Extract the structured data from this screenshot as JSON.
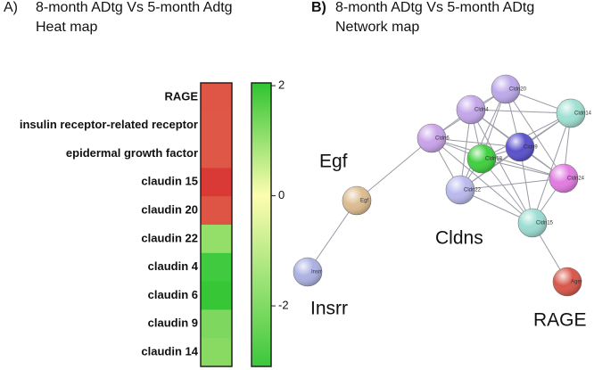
{
  "chart_data": [
    {
      "type": "heatmap",
      "panel": "A)",
      "title": "8-month ADtg Vs 5-month Adtg",
      "subtitle": "Heat map",
      "categories": [
        "RAGE",
        "insulin receptor-related receptor",
        "epidermal growth factor",
        "claudin 15",
        "claudin 20",
        "claudin 22",
        "claudin 4",
        "claudin 6",
        "claudin 9",
        "claudin 14"
      ],
      "values": [
        1.5,
        1.4,
        1.4,
        1.8,
        1.5,
        -1.2,
        -1.8,
        -1.9,
        -1.4,
        -1.3
      ],
      "colors": [
        "#df5646",
        "#df5747",
        "#df5747",
        "#d93a35",
        "#df5545",
        "#93df6a",
        "#3fca3f",
        "#36c636",
        "#7ed85f",
        "#88da62"
      ],
      "clim": [
        -3.1,
        2.05
      ],
      "cticks": [
        2,
        0,
        -2
      ],
      "colorbar_colors": [
        "#2fc42f",
        "#fdfdb0",
        "#3cc83c"
      ]
    },
    {
      "type": "network",
      "panel": "B)",
      "title": "8-month ADtg Vs 5-month ADtg",
      "subtitle": "Network map",
      "nodes": [
        "Cldn20",
        "Cldn4",
        "Cldn14",
        "Cldn6",
        "Cldn9",
        "Cldn18",
        "Cldn24",
        "Cldn22",
        "Cldn15",
        "Egf",
        "Insrr",
        "Ager"
      ],
      "groups": [
        "Egf",
        "Cldns",
        "Insrr",
        "RAGE"
      ]
    }
  ]
}
